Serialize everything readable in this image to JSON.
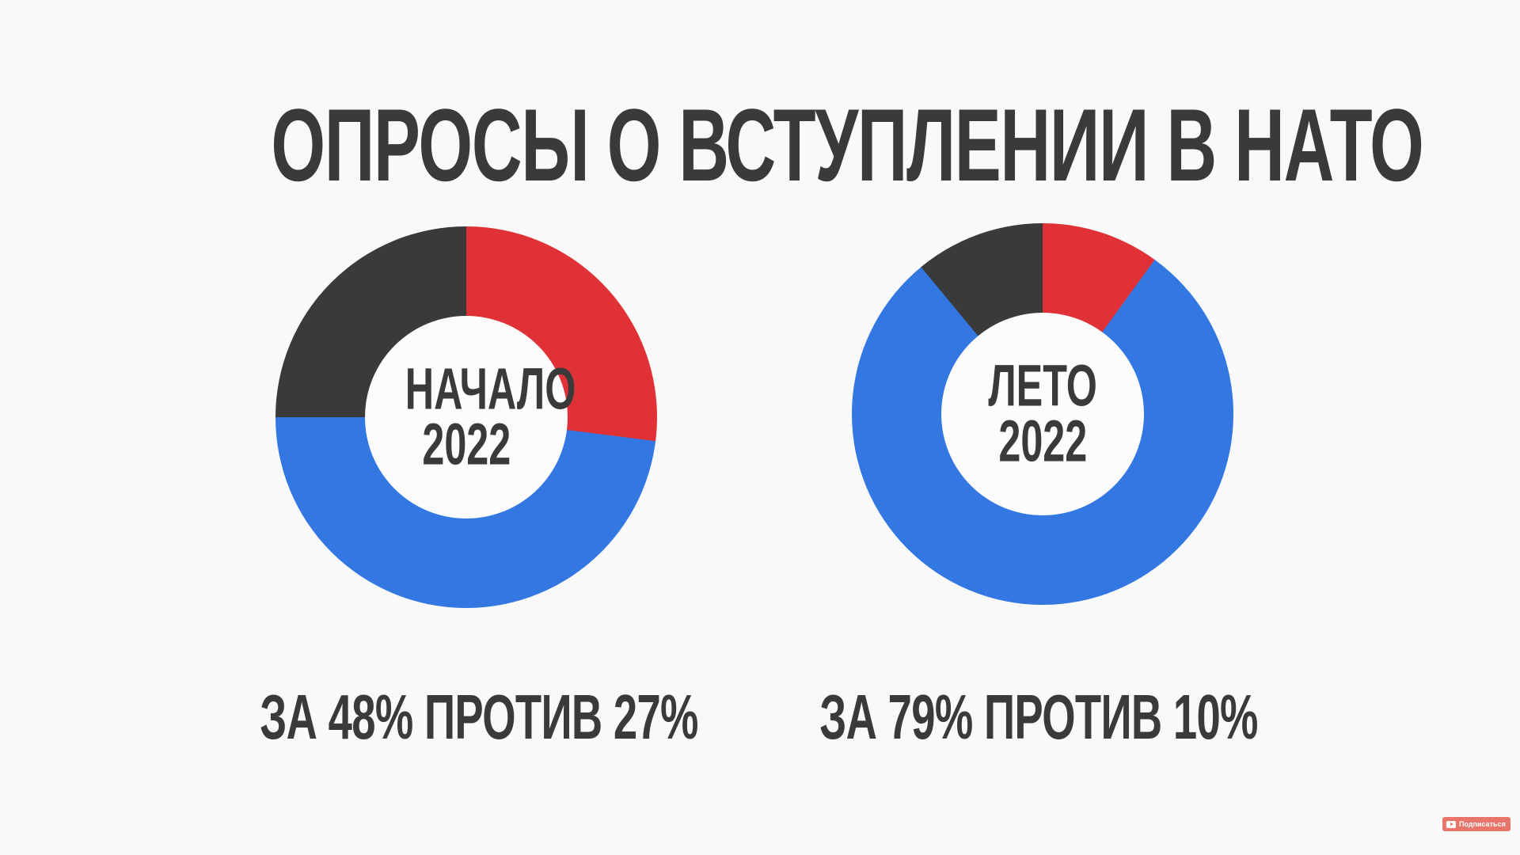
{
  "page": {
    "background": "#f9f9f9",
    "title": "ОПРОСЫ О ВСТУПЛЕНИИ В НАТО"
  },
  "colors": {
    "text_dark": "#3a3a3a",
    "for_blue": "#3377e3",
    "against_red": "#e03236",
    "other_dark": "#3a3a3a",
    "donut_hole": "#fcfcfc"
  },
  "chart_data": [
    {
      "type": "pie",
      "subtype": "donut",
      "center_label": [
        "НАЧАЛО",
        "2022"
      ],
      "caption": "ЗА 48% ПРОТИВ 27%",
      "start": "top",
      "direction": "clockwise",
      "legend": false,
      "segments": [
        {
          "label": "ПРОТИВ",
          "value": 27,
          "color": "#e03236"
        },
        {
          "label": "ЗА",
          "value": 48,
          "color": "#3377e3"
        },
        {
          "label": "",
          "value": 25,
          "color": "#3a3a3a"
        }
      ]
    },
    {
      "type": "pie",
      "subtype": "donut",
      "center_label": [
        "ЛЕТО",
        "2022"
      ],
      "caption": "ЗА 79% ПРОТИВ 10%",
      "start": "top",
      "direction": "clockwise",
      "legend": false,
      "segments": [
        {
          "label": "ПРОТИВ",
          "value": 10,
          "color": "#e03236"
        },
        {
          "label": "ЗА",
          "value": 79,
          "color": "#3377e3"
        },
        {
          "label": "",
          "value": 11,
          "color": "#3a3a3a"
        }
      ]
    }
  ],
  "subscribe_button": {
    "label": "Подписаться",
    "background": "#e9756a"
  }
}
